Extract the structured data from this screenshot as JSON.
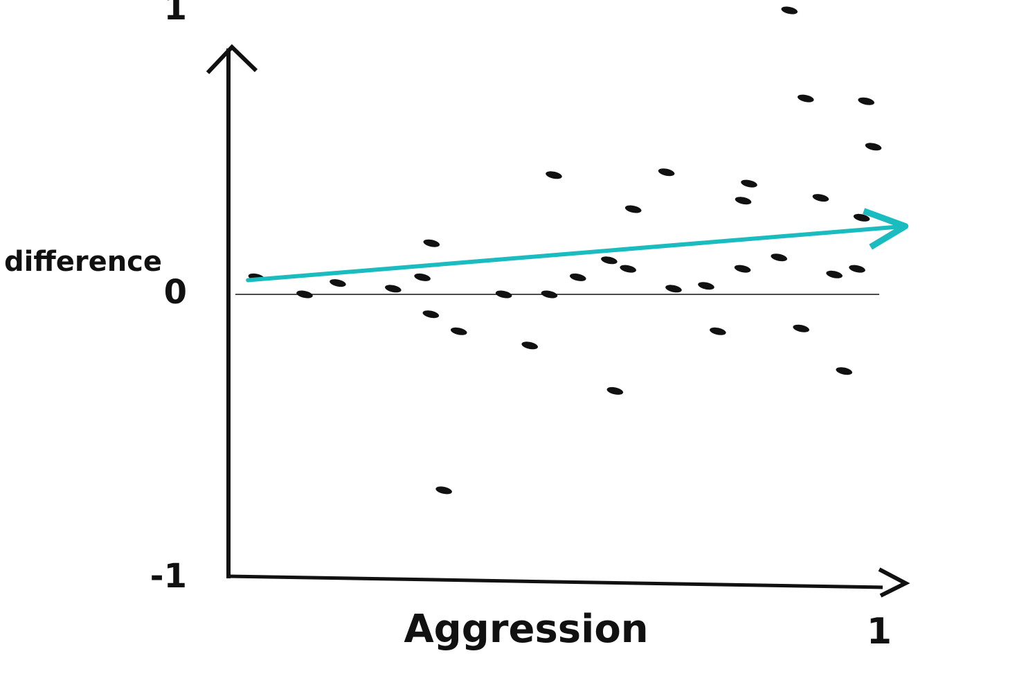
{
  "chart_data": {
    "type": "scatter",
    "xlabel": "Aggression",
    "ylabel": "difference",
    "xlim": [
      0,
      1
    ],
    "ylim": [
      -1,
      1
    ],
    "xticks": [
      1
    ],
    "yticks": [
      -1,
      0,
      1
    ],
    "zero_line": true,
    "color": "#111111",
    "x": [
      0.862,
      0.887,
      0.98,
      0.991,
      0.5,
      0.673,
      0.8,
      0.791,
      0.91,
      0.622,
      0.973,
      0.312,
      0.585,
      0.614,
      0.846,
      0.79,
      0.931,
      0.966,
      0.043,
      0.298,
      0.537,
      0.168,
      0.253,
      0.117,
      0.423,
      0.493,
      0.684,
      0.734,
      0.311,
      0.354,
      0.463,
      0.752,
      0.88,
      0.946,
      0.594,
      0.331
    ],
    "values": [
      1.0,
      0.69,
      0.68,
      0.52,
      0.42,
      0.43,
      0.39,
      0.33,
      0.34,
      0.3,
      0.27,
      0.18,
      0.12,
      0.09,
      0.13,
      0.09,
      0.07,
      0.09,
      0.06,
      0.06,
      0.06,
      0.04,
      0.02,
      0.0,
      0.0,
      0.0,
      0.02,
      0.03,
      -0.07,
      -0.13,
      -0.18,
      -0.13,
      -0.12,
      -0.27,
      -0.34,
      -0.69
    ],
    "trend": {
      "color": "#1bbcc0",
      "x": [
        0.03,
        1.04
      ],
      "values": [
        0.05,
        0.24
      ]
    }
  }
}
